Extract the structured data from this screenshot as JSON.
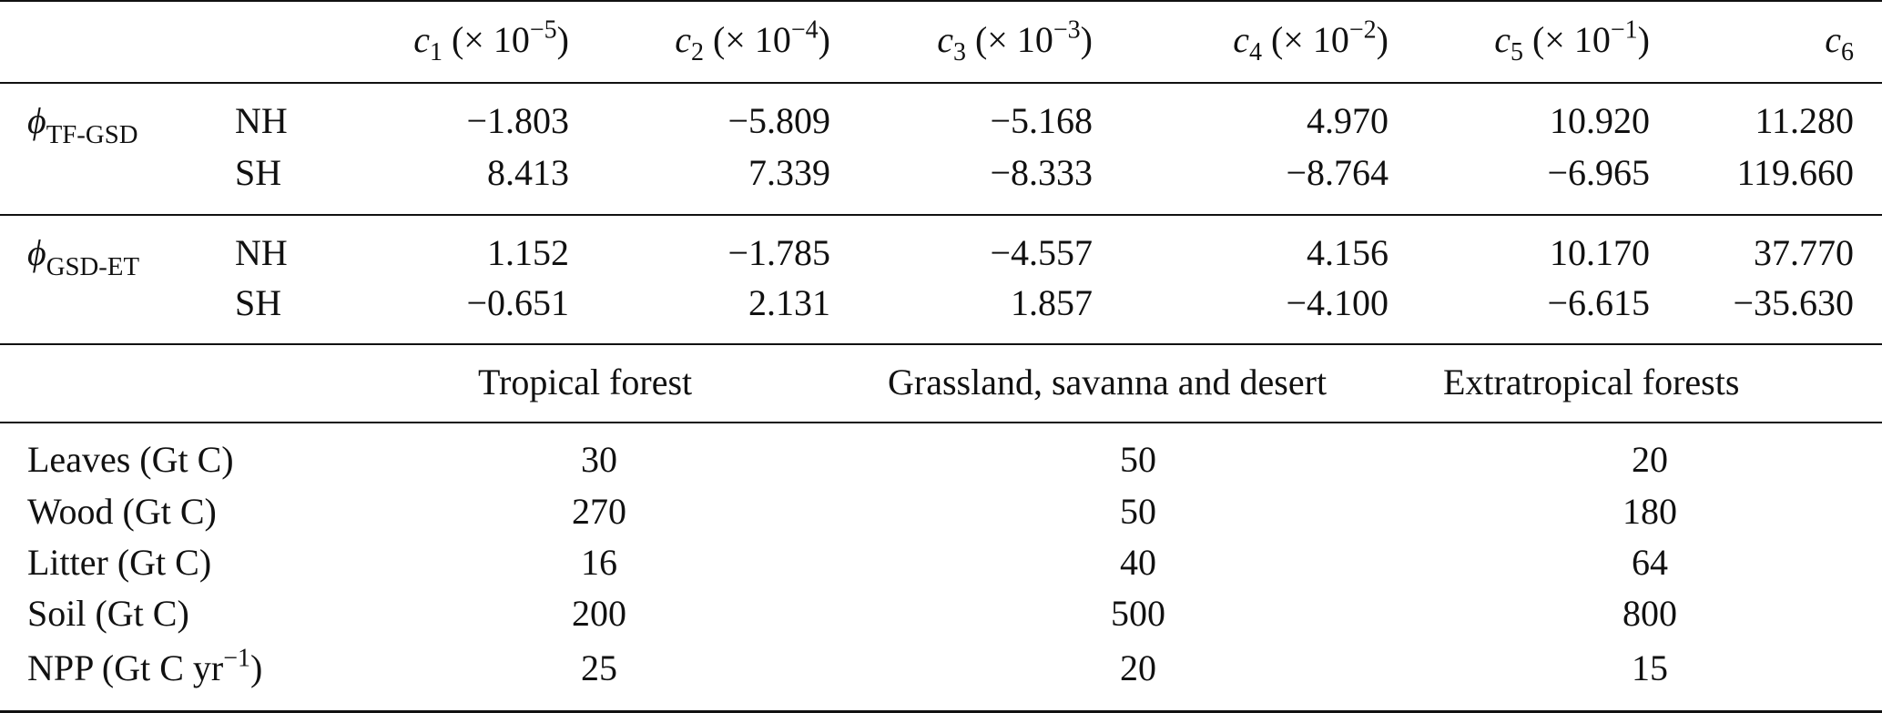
{
  "coef_table": {
    "columns": [
      {
        "var": "c",
        "sub": "1",
        "scale_prefix": " (× 10",
        "exp": "−5",
        "scale_suffix": ")"
      },
      {
        "var": "c",
        "sub": "2",
        "scale_prefix": " (× 10",
        "exp": "−4",
        "scale_suffix": ")"
      },
      {
        "var": "c",
        "sub": "3",
        "scale_prefix": " (× 10",
        "exp": "−3",
        "scale_suffix": ")"
      },
      {
        "var": "c",
        "sub": "4",
        "scale_prefix": " (× 10",
        "exp": "−2",
        "scale_suffix": ")"
      },
      {
        "var": "c",
        "sub": "5",
        "scale_prefix": " (× 10",
        "exp": "−1",
        "scale_suffix": ")"
      },
      {
        "var": "c",
        "sub": "6",
        "scale_prefix": "",
        "exp": "",
        "scale_suffix": ""
      }
    ],
    "groups": [
      {
        "symbol": "ϕ",
        "subscript": "TF-GSD",
        "rows": [
          {
            "hemisphere": "NH",
            "values": [
              "−1.803",
              "−5.809",
              "−5.168",
              "4.970",
              "10.920",
              "11.280"
            ]
          },
          {
            "hemisphere": "SH",
            "values": [
              "8.413",
              "7.339",
              "−8.333",
              "−8.764",
              "−6.965",
              "119.660"
            ]
          }
        ]
      },
      {
        "symbol": "ϕ",
        "subscript": "GSD-ET",
        "rows": [
          {
            "hemisphere": "NH",
            "values": [
              "1.152",
              "−1.785",
              "−4.557",
              "4.156",
              "10.170",
              "37.770"
            ]
          },
          {
            "hemisphere": "SH",
            "values": [
              "−0.651",
              "2.131",
              "1.857",
              "−4.100",
              "−6.615",
              "−35.630"
            ]
          }
        ]
      }
    ]
  },
  "biome_table": {
    "headers": [
      "Tropical forest",
      "Grassland, savanna and desert",
      "Extratropical forests"
    ],
    "rows": [
      {
        "label": "Leaves (Gt C)",
        "values": [
          "30",
          "50",
          "20"
        ]
      },
      {
        "label": "Wood (Gt C)",
        "values": [
          "270",
          "50",
          "180"
        ]
      },
      {
        "label": "Litter (Gt C)",
        "values": [
          "16",
          "40",
          "64"
        ]
      },
      {
        "label": "Soil (Gt C)",
        "values": [
          "200",
          "500",
          "800"
        ]
      },
      {
        "label_prefix": "NPP (Gt C yr",
        "label_exp": "−1",
        "label_suffix": ")",
        "values": [
          "25",
          "20",
          "15"
        ]
      }
    ]
  }
}
